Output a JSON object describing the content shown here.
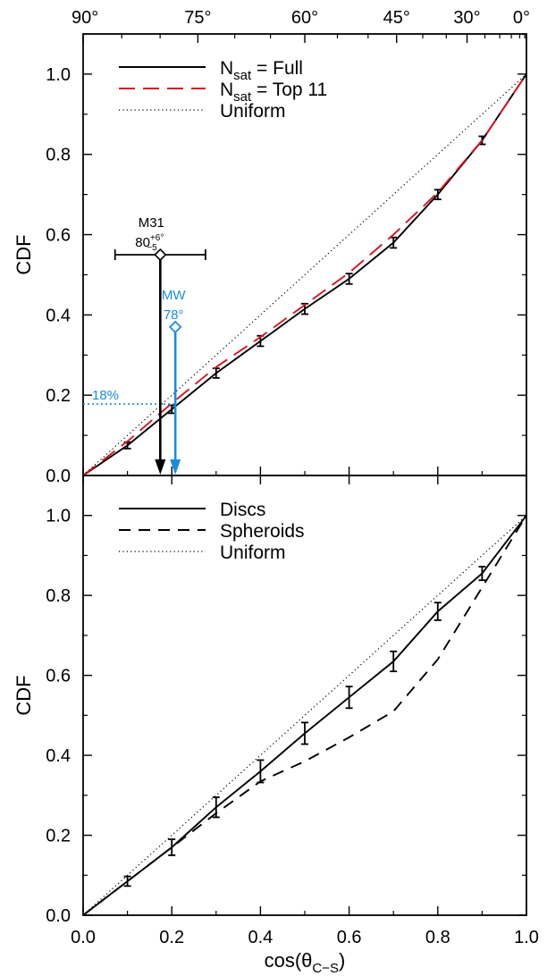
{
  "chart_data": [
    {
      "type": "line",
      "panel": "top",
      "xlim": [
        0,
        1
      ],
      "ylim": [
        0,
        1.1
      ],
      "ylabel": "CDF",
      "xlabel": "",
      "xticks": [
        0.0,
        0.2,
        0.4,
        0.6,
        0.8,
        1.0
      ],
      "yticks": [
        0.0,
        0.2,
        0.4,
        0.6,
        0.8,
        1.0
      ],
      "ytick_labels": [
        "0.0",
        "0.2",
        "0.4",
        "0.6",
        "0.8",
        "1.0"
      ],
      "top_axis": {
        "labels": [
          "90°",
          "75°",
          "60°",
          "45°",
          "30°",
          "0°"
        ],
        "degrees": [
          90,
          75,
          60,
          45,
          30,
          0
        ]
      },
      "legend": {
        "placement": "top-left",
        "entries": [
          {
            "main": "N",
            "sub": "sat",
            "rest": " = Full",
            "style": "solid",
            "color": "#000000"
          },
          {
            "main": "N",
            "sub": "sat",
            "rest": " = Top 11",
            "style": "long-dash",
            "color": "#d9141f"
          },
          {
            "main": "Uniform",
            "sub": "",
            "rest": "",
            "style": "dotted",
            "color": "#000000"
          }
        ]
      },
      "series": [
        {
          "name": "Nsat = Full",
          "style": "solid",
          "color": "#000000",
          "x": [
            0.0,
            0.1,
            0.2,
            0.3,
            0.4,
            0.5,
            0.6,
            0.7,
            0.8,
            0.9,
            1.0
          ],
          "y": [
            0.0,
            0.075,
            0.165,
            0.255,
            0.335,
            0.415,
            0.49,
            0.58,
            0.7,
            0.835,
            1.0
          ],
          "yerr": [
            0,
            0.008,
            0.01,
            0.012,
            0.013,
            0.013,
            0.013,
            0.013,
            0.012,
            0.01,
            0
          ]
        },
        {
          "name": "Nsat = Top 11",
          "style": "long-dash",
          "color": "#d9141f",
          "x": [
            0.0,
            0.1,
            0.2,
            0.3,
            0.4,
            0.5,
            0.6,
            0.7,
            0.8,
            0.9,
            1.0
          ],
          "y": [
            0.0,
            0.085,
            0.18,
            0.27,
            0.345,
            0.425,
            0.505,
            0.6,
            0.705,
            0.835,
            1.0
          ]
        },
        {
          "name": "Uniform",
          "style": "dotted",
          "color": "#000000",
          "x": [
            0.0,
            1.0
          ],
          "y": [
            0.0,
            1.0
          ]
        }
      ],
      "annotations": {
        "m31": {
          "label": "M31",
          "value_main": "80",
          "value_sup": "+6°",
          "value_sub": "−5",
          "x": 0.174,
          "y": 0.55,
          "xerr_low": 0.174,
          "xerr_high": 0.276,
          "color": "#000000"
        },
        "mw": {
          "label": "MW",
          "value": "78°",
          "x": 0.208,
          "y": 0.37,
          "color": "#1a8ce0"
        },
        "pct": {
          "label": "18%",
          "y": 0.178,
          "color": "#1a8ce0"
        }
      }
    },
    {
      "type": "line",
      "panel": "bottom",
      "xlim": [
        0,
        1
      ],
      "ylim": [
        0,
        1.1
      ],
      "ylabel": "CDF",
      "xlabel": "cos(θ",
      "xlabel_sub": "C−S",
      "xlabel_close": ")",
      "xticks": [
        0.0,
        0.2,
        0.4,
        0.6,
        0.8,
        1.0
      ],
      "xtick_labels": [
        "0.0",
        "0.2",
        "0.4",
        "0.6",
        "0.8",
        "1.0"
      ],
      "yticks": [
        0.0,
        0.2,
        0.4,
        0.6,
        0.8,
        1.0
      ],
      "ytick_labels": [
        "0.0",
        "0.2",
        "0.4",
        "0.6",
        "0.8",
        "1.0"
      ],
      "legend": {
        "placement": "top-left",
        "entries": [
          {
            "main": "Discs",
            "sub": "",
            "rest": "",
            "style": "solid",
            "color": "#000000"
          },
          {
            "main": "Spheroids",
            "sub": "",
            "rest": "",
            "style": "dashed",
            "color": "#000000"
          },
          {
            "main": "Uniform",
            "sub": "",
            "rest": "",
            "style": "dotted",
            "color": "#000000"
          }
        ]
      },
      "series": [
        {
          "name": "Discs",
          "style": "solid",
          "color": "#000000",
          "x": [
            0.0,
            0.1,
            0.2,
            0.3,
            0.4,
            0.5,
            0.6,
            0.7,
            0.8,
            0.9,
            1.0
          ],
          "y": [
            0.0,
            0.085,
            0.17,
            0.27,
            0.36,
            0.455,
            0.545,
            0.635,
            0.76,
            0.855,
            1.0
          ],
          "yerr": [
            0,
            0.012,
            0.02,
            0.025,
            0.028,
            0.027,
            0.027,
            0.025,
            0.022,
            0.017,
            0
          ]
        },
        {
          "name": "Spheroids",
          "style": "dashed",
          "color": "#000000",
          "x": [
            0.0,
            0.1,
            0.2,
            0.3,
            0.4,
            0.5,
            0.6,
            0.7,
            0.8,
            0.9,
            1.0
          ],
          "y": [
            0.0,
            0.085,
            0.17,
            0.255,
            0.335,
            0.385,
            0.445,
            0.51,
            0.64,
            0.82,
            1.0
          ]
        },
        {
          "name": "Uniform",
          "style": "dotted",
          "color": "#000000",
          "x": [
            0.0,
            1.0
          ],
          "y": [
            0.0,
            1.0
          ]
        }
      ]
    }
  ]
}
